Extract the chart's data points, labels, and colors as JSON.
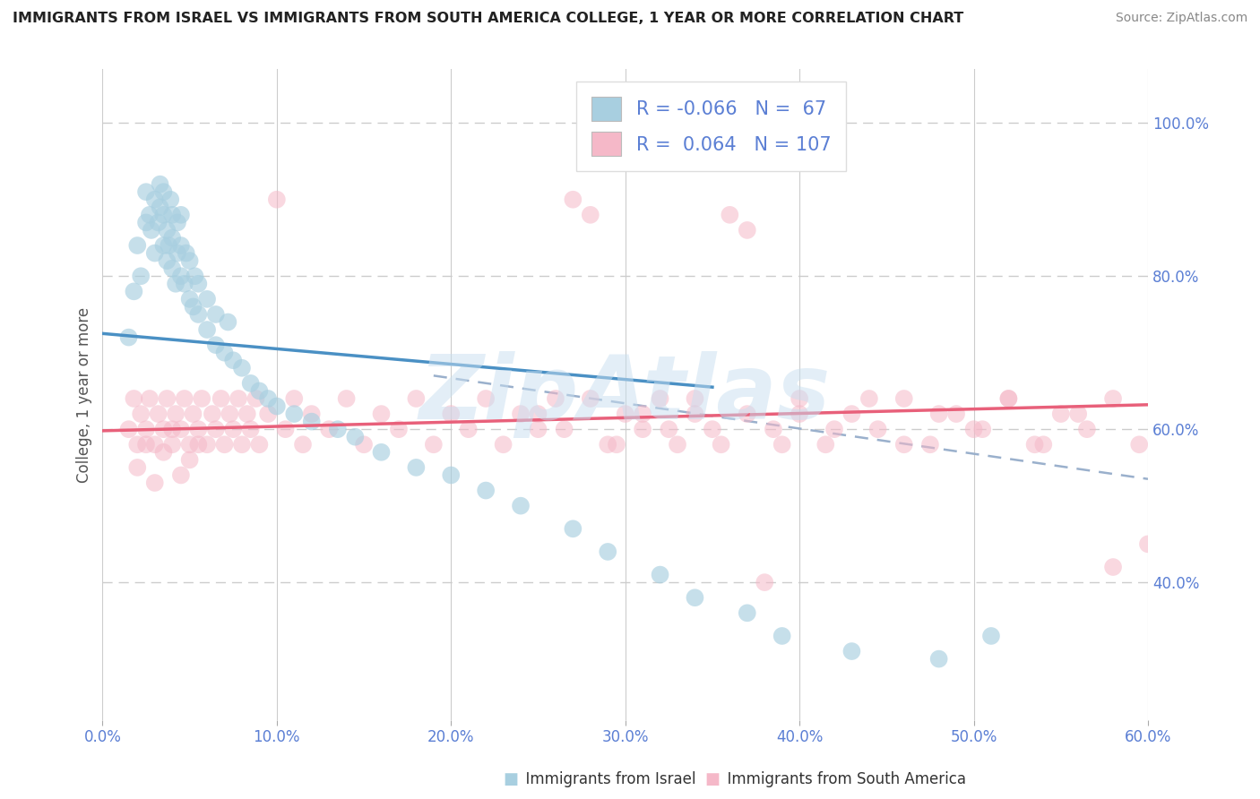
{
  "title": "IMMIGRANTS FROM ISRAEL VS IMMIGRANTS FROM SOUTH AMERICA COLLEGE, 1 YEAR OR MORE CORRELATION CHART",
  "source": "Source: ZipAtlas.com",
  "ylabel": "College, 1 year or more",
  "xlim": [
    0.0,
    0.6
  ],
  "ylim": [
    0.22,
    1.07
  ],
  "xtick_labels": [
    "0.0%",
    "10.0%",
    "20.0%",
    "30.0%",
    "40.0%",
    "50.0%",
    "60.0%"
  ],
  "xtick_values": [
    0.0,
    0.1,
    0.2,
    0.3,
    0.4,
    0.5,
    0.6
  ],
  "ytick_labels": [
    "40.0%",
    "60.0%",
    "80.0%",
    "100.0%"
  ],
  "ytick_values": [
    0.4,
    0.6,
    0.8,
    1.0
  ],
  "blue_color": "#a8cfe0",
  "pink_color": "#f5b8c8",
  "blue_line_color": "#4a90c4",
  "pink_line_color": "#e8607a",
  "dashed_line_color": "#9ab0cc",
  "tick_color": "#5b7fd4",
  "r_blue": -0.066,
  "n_blue": 67,
  "r_pink": 0.064,
  "n_pink": 107,
  "watermark": "ZipAtlas",
  "legend_label_blue": "Immigrants from Israel",
  "legend_label_pink": "Immigrants from South America",
  "blue_line_x0": 0.0,
  "blue_line_x1": 0.35,
  "blue_line_y0": 0.725,
  "blue_line_y1": 0.655,
  "pink_line_x0": 0.0,
  "pink_line_x1": 0.6,
  "pink_line_y0": 0.598,
  "pink_line_y1": 0.632,
  "dash_line_x0": 0.19,
  "dash_line_x1": 0.6,
  "dash_line_y0": 0.67,
  "dash_line_y1": 0.535,
  "blue_x": [
    0.015,
    0.018,
    0.02,
    0.022,
    0.025,
    0.025,
    0.027,
    0.028,
    0.03,
    0.03,
    0.032,
    0.033,
    0.033,
    0.035,
    0.035,
    0.035,
    0.037,
    0.037,
    0.038,
    0.039,
    0.04,
    0.04,
    0.04,
    0.042,
    0.043,
    0.043,
    0.045,
    0.045,
    0.045,
    0.047,
    0.048,
    0.05,
    0.05,
    0.052,
    0.053,
    0.055,
    0.055,
    0.06,
    0.06,
    0.065,
    0.065,
    0.07,
    0.072,
    0.075,
    0.08,
    0.085,
    0.09,
    0.095,
    0.1,
    0.11,
    0.12,
    0.135,
    0.145,
    0.16,
    0.18,
    0.2,
    0.22,
    0.24,
    0.27,
    0.29,
    0.32,
    0.34,
    0.37,
    0.39,
    0.43,
    0.48,
    0.51
  ],
  "blue_y": [
    0.72,
    0.78,
    0.84,
    0.8,
    0.87,
    0.91,
    0.88,
    0.86,
    0.83,
    0.9,
    0.87,
    0.89,
    0.92,
    0.84,
    0.88,
    0.91,
    0.82,
    0.86,
    0.84,
    0.9,
    0.81,
    0.85,
    0.88,
    0.79,
    0.83,
    0.87,
    0.8,
    0.84,
    0.88,
    0.79,
    0.83,
    0.77,
    0.82,
    0.76,
    0.8,
    0.75,
    0.79,
    0.73,
    0.77,
    0.71,
    0.75,
    0.7,
    0.74,
    0.69,
    0.68,
    0.66,
    0.65,
    0.64,
    0.63,
    0.62,
    0.61,
    0.6,
    0.59,
    0.57,
    0.55,
    0.54,
    0.52,
    0.5,
    0.47,
    0.44,
    0.41,
    0.38,
    0.36,
    0.33,
    0.31,
    0.3,
    0.33
  ],
  "pink_x": [
    0.015,
    0.018,
    0.02,
    0.022,
    0.025,
    0.027,
    0.03,
    0.032,
    0.035,
    0.037,
    0.04,
    0.042,
    0.045,
    0.047,
    0.05,
    0.052,
    0.055,
    0.057,
    0.06,
    0.063,
    0.065,
    0.068,
    0.07,
    0.073,
    0.075,
    0.078,
    0.08,
    0.083,
    0.085,
    0.088,
    0.09,
    0.095,
    0.1,
    0.105,
    0.11,
    0.115,
    0.12,
    0.13,
    0.14,
    0.15,
    0.16,
    0.17,
    0.18,
    0.19,
    0.2,
    0.21,
    0.22,
    0.23,
    0.24,
    0.25,
    0.26,
    0.27,
    0.28,
    0.29,
    0.3,
    0.31,
    0.32,
    0.33,
    0.34,
    0.35,
    0.36,
    0.37,
    0.38,
    0.39,
    0.4,
    0.42,
    0.44,
    0.46,
    0.48,
    0.5,
    0.52,
    0.54,
    0.56,
    0.58,
    0.6,
    0.25,
    0.265,
    0.28,
    0.295,
    0.31,
    0.325,
    0.34,
    0.355,
    0.37,
    0.385,
    0.4,
    0.415,
    0.43,
    0.445,
    0.46,
    0.475,
    0.49,
    0.505,
    0.52,
    0.535,
    0.55,
    0.565,
    0.58,
    0.595,
    0.02,
    0.025,
    0.03,
    0.035,
    0.04,
    0.045,
    0.05,
    0.055
  ],
  "pink_y": [
    0.6,
    0.64,
    0.58,
    0.62,
    0.6,
    0.64,
    0.58,
    0.62,
    0.6,
    0.64,
    0.58,
    0.62,
    0.6,
    0.64,
    0.58,
    0.62,
    0.6,
    0.64,
    0.58,
    0.62,
    0.6,
    0.64,
    0.58,
    0.62,
    0.6,
    0.64,
    0.58,
    0.62,
    0.6,
    0.64,
    0.58,
    0.62,
    0.9,
    0.6,
    0.64,
    0.58,
    0.62,
    0.6,
    0.64,
    0.58,
    0.62,
    0.6,
    0.64,
    0.58,
    0.62,
    0.6,
    0.64,
    0.58,
    0.62,
    0.6,
    0.64,
    0.9,
    0.88,
    0.58,
    0.62,
    0.6,
    0.64,
    0.58,
    0.62,
    0.6,
    0.88,
    0.86,
    0.4,
    0.58,
    0.62,
    0.6,
    0.64,
    0.58,
    0.62,
    0.6,
    0.64,
    0.58,
    0.62,
    0.42,
    0.45,
    0.62,
    0.6,
    0.64,
    0.58,
    0.62,
    0.6,
    0.64,
    0.58,
    0.62,
    0.6,
    0.64,
    0.58,
    0.62,
    0.6,
    0.64,
    0.58,
    0.62,
    0.6,
    0.64,
    0.58,
    0.62,
    0.6,
    0.64,
    0.58,
    0.55,
    0.58,
    0.53,
    0.57,
    0.6,
    0.54,
    0.56,
    0.58
  ]
}
